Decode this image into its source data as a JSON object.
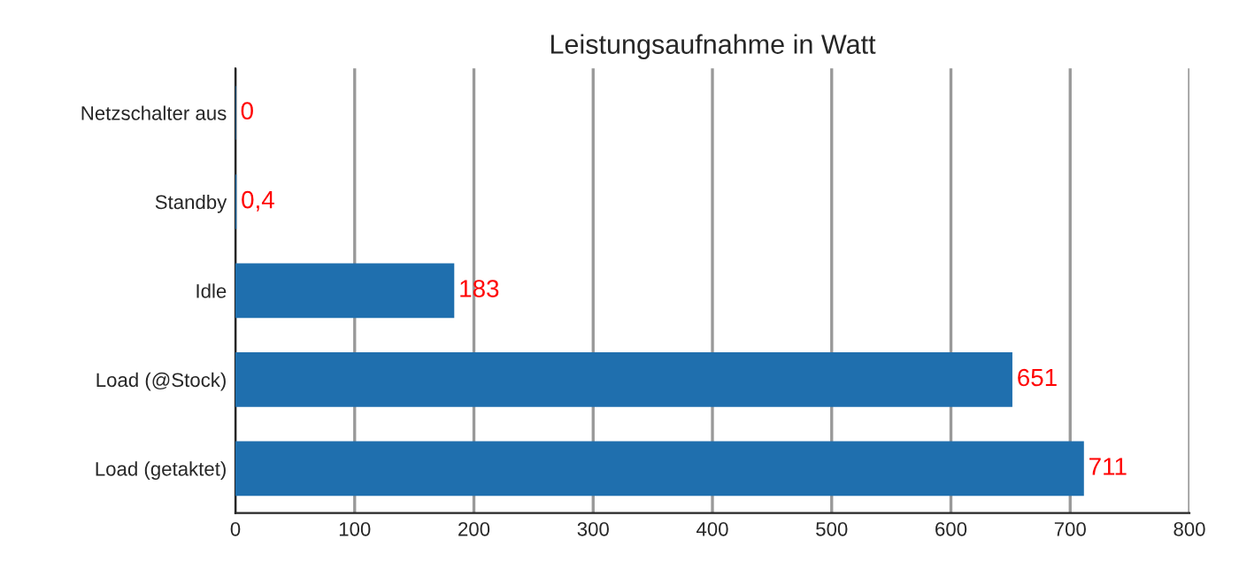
{
  "chart_data": {
    "type": "bar",
    "orientation": "horizontal",
    "title": "Leistungsaufnahme in Watt",
    "categories": [
      "Netzschalter aus",
      "Standby",
      "Idle",
      "Load (@Stock)",
      "Load (getaktet)"
    ],
    "values": [
      0,
      0.4,
      183,
      651,
      711
    ],
    "value_labels": [
      "0",
      "0,4",
      "183",
      "651",
      "711"
    ],
    "color": "#1f6fae",
    "xlim": [
      0,
      800
    ],
    "xticks": [
      0,
      100,
      200,
      300,
      400,
      500,
      600,
      700,
      800
    ],
    "grid": "x",
    "legend": false
  }
}
